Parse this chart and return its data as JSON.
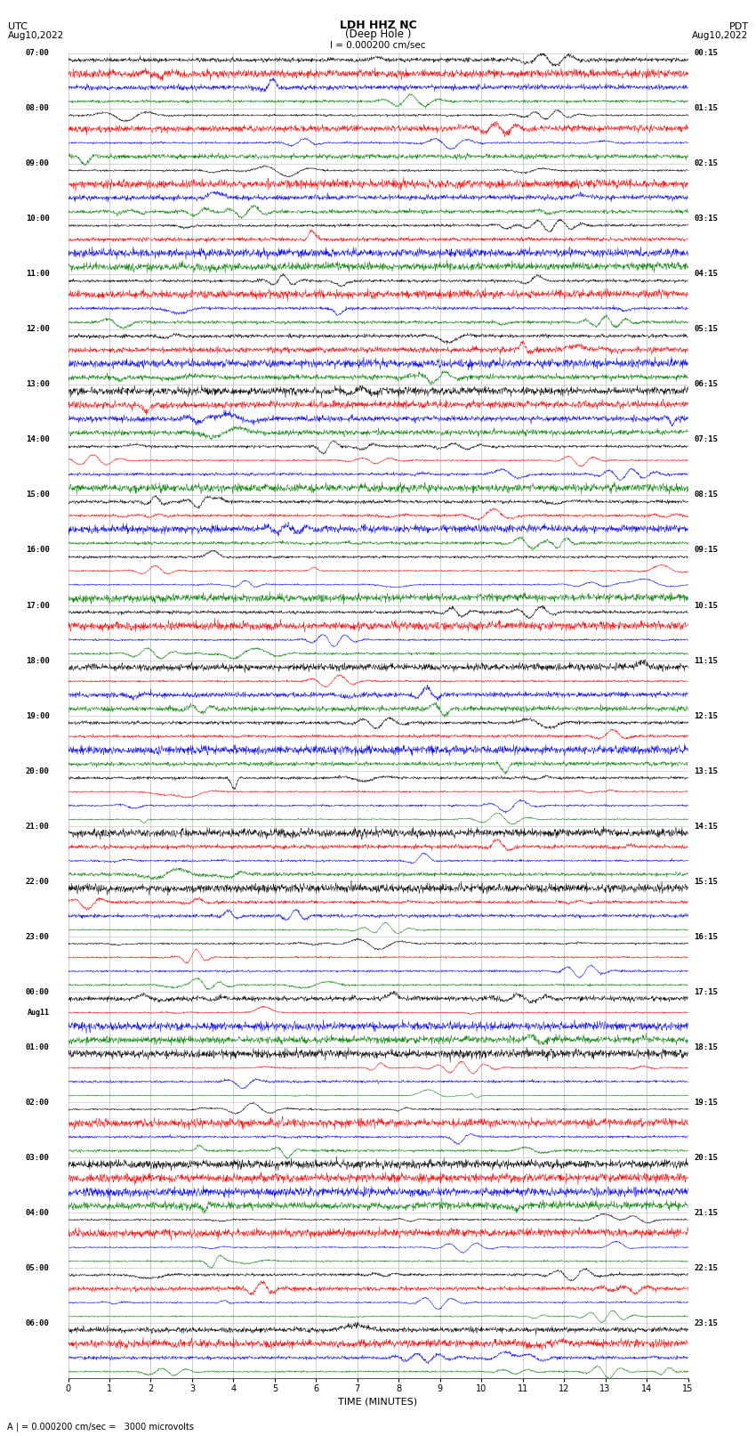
{
  "title_line1": "LDH HHZ NC",
  "title_line2": "(Deep Hole )",
  "scale_label": "I = 0.000200 cm/sec",
  "bottom_label": "A | = 0.000200 cm/sec =   3000 microvolts",
  "utc_label": "UTC",
  "utc_date": "Aug10,2022",
  "pdt_label": "PDT",
  "pdt_date": "Aug10,2022",
  "aug11_label": "Aug11",
  "xlabel": "TIME (MINUTES)",
  "left_times": [
    "07:00",
    "08:00",
    "09:00",
    "10:00",
    "11:00",
    "12:00",
    "13:00",
    "14:00",
    "15:00",
    "16:00",
    "17:00",
    "18:00",
    "19:00",
    "20:00",
    "21:00",
    "22:00",
    "23:00",
    "00:00",
    "01:00",
    "02:00",
    "03:00",
    "04:00",
    "05:00",
    "06:00"
  ],
  "right_times": [
    "00:15",
    "01:15",
    "02:15",
    "03:15",
    "04:15",
    "05:15",
    "06:15",
    "07:15",
    "08:15",
    "09:15",
    "10:15",
    "11:15",
    "12:15",
    "13:15",
    "14:15",
    "15:15",
    "16:15",
    "17:15",
    "18:15",
    "19:15",
    "20:15",
    "21:15",
    "22:15",
    "23:15"
  ],
  "colors": [
    "black",
    "red",
    "blue",
    "green"
  ],
  "bg_color": "white",
  "grid_color": "#bbbbbb",
  "n_rows": 24,
  "traces_per_row": 4,
  "minutes": 15,
  "noise_seed": 42
}
